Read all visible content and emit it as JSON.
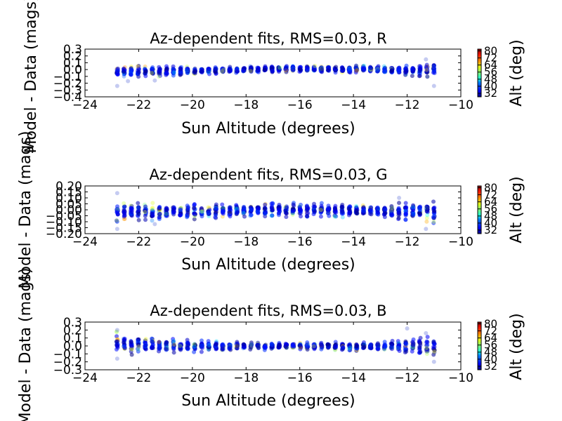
{
  "chart_data": [
    {
      "type": "scatter",
      "title": "Az-dependent fits, RMS=0.03, R",
      "xlabel": "Sun Altitude (degrees)",
      "ylabel": "Model - Data (mags)",
      "xlim": [
        -24,
        -10
      ],
      "ylim": [
        -0.4,
        0.3
      ],
      "xticks": [
        -24,
        -22,
        -20,
        -18,
        -16,
        -14,
        -12,
        -10
      ],
      "yticks": [
        0.3,
        0.2,
        0.1,
        0.0,
        -0.1,
        -0.2,
        -0.3,
        -0.4
      ],
      "xtick_labels": [
        "−24",
        "−22",
        "−20",
        "−18",
        "−16",
        "−14",
        "−12",
        "−10"
      ],
      "ytick_labels": [
        "0.3",
        "0.2",
        "0.1",
        "0.0",
        "−0.1",
        "−0.2",
        "−0.3",
        "−0.4"
      ],
      "colorbar": {
        "label": "Alt (deg)",
        "range": [
          28,
          82
        ],
        "ticks": [
          "80",
          "72",
          "64",
          "56",
          "48",
          "40",
          "32"
        ],
        "tick_values": [
          80,
          72,
          64,
          56,
          48,
          40,
          32
        ]
      },
      "x_start": -22.8,
      "x_end": -11.0,
      "n_columns": 46,
      "envelope": {
        "x": [
          -22.8,
          -21,
          -19,
          -17,
          -15,
          -13,
          -11.5,
          -11.0
        ],
        "upper": [
          0.06,
          0.05,
          0.04,
          0.06,
          0.06,
          0.06,
          0.07,
          0.14
        ],
        "lower": [
          -0.12,
          -0.1,
          -0.06,
          -0.04,
          -0.04,
          -0.06,
          -0.1,
          -0.13
        ]
      },
      "outliers": [
        [
          -22.8,
          -0.24
        ],
        [
          -22.4,
          -0.17
        ],
        [
          -11.3,
          0.15
        ],
        [
          -11.0,
          -0.24
        ],
        [
          -21.4,
          -0.16
        ]
      ],
      "grid": false
    },
    {
      "type": "scatter",
      "title": "Az-dependent fits, RMS=0.03, G",
      "xlabel": "Sun Altitude (degrees)",
      "ylabel": "Model - Data (mags)",
      "xlim": [
        -24,
        -10
      ],
      "ylim": [
        -0.2,
        0.2
      ],
      "xticks": [
        -24,
        -22,
        -20,
        -18,
        -16,
        -14,
        -12,
        -10
      ],
      "yticks": [
        0.2,
        0.15,
        0.1,
        0.05,
        0.0,
        -0.05,
        -0.1,
        -0.15,
        -0.2
      ],
      "xtick_labels": [
        "−24",
        "−22",
        "−20",
        "−18",
        "−16",
        "−14",
        "−12",
        "−10"
      ],
      "ytick_labels": [
        "0.20",
        "0.15",
        "0.10",
        "0.05",
        "0.00",
        "−0.05",
        "−0.10",
        "−0.15",
        "−0.20"
      ],
      "colorbar": {
        "label": "Alt (deg)",
        "range": [
          28,
          82
        ],
        "ticks": [
          "80",
          "72",
          "64",
          "56",
          "48",
          "40",
          "32"
        ],
        "tick_values": [
          80,
          72,
          64,
          56,
          48,
          40,
          32
        ]
      },
      "x_start": -22.8,
      "x_end": -11.0,
      "n_columns": 46,
      "envelope": {
        "x": [
          -22.8,
          -21,
          -19,
          -17,
          -15,
          -13,
          -11.5,
          -11.0
        ],
        "upper": [
          0.08,
          0.06,
          0.05,
          0.06,
          0.06,
          0.05,
          0.07,
          0.09
        ],
        "lower": [
          -0.1,
          -0.09,
          -0.07,
          -0.06,
          -0.06,
          -0.07,
          -0.1,
          -0.12
        ]
      },
      "outliers": [
        [
          -22.8,
          0.14
        ],
        [
          -22.8,
          -0.16
        ],
        [
          -11.3,
          -0.16
        ],
        [
          -21.4,
          -0.12
        ],
        [
          -12.3,
          0.1
        ]
      ],
      "grid": false
    },
    {
      "type": "scatter",
      "title": "Az-dependent fits, RMS=0.03, B",
      "xlabel": "Sun Altitude (degrees)",
      "ylabel": "Model - Data (mags)",
      "xlim": [
        -24,
        -10
      ],
      "ylim": [
        -0.3,
        0.3
      ],
      "xticks": [
        -24,
        -22,
        -20,
        -18,
        -16,
        -14,
        -12,
        -10
      ],
      "yticks": [
        0.3,
        0.2,
        0.1,
        0.0,
        -0.1,
        -0.2,
        -0.3
      ],
      "xtick_labels": [
        "−24",
        "−22",
        "−20",
        "−18",
        "−16",
        "−14",
        "−12",
        "−10"
      ],
      "ytick_labels": [
        "0.3",
        "0.2",
        "0.1",
        "0.0",
        "−0.1",
        "−0.2",
        "−0.3"
      ],
      "colorbar": {
        "label": "Alt (deg)",
        "range": [
          28,
          82
        ],
        "ticks": [
          "80",
          "72",
          "64",
          "56",
          "48",
          "40",
          "32"
        ],
        "tick_values": [
          80,
          72,
          64,
          56,
          48,
          40,
          32
        ]
      },
      "x_start": -22.8,
      "x_end": -11.0,
      "n_columns": 46,
      "envelope": {
        "x": [
          -22.8,
          -21,
          -19,
          -17,
          -15,
          -13,
          -11.5,
          -11.0
        ],
        "upper": [
          0.18,
          0.1,
          0.06,
          0.04,
          0.05,
          0.05,
          0.12,
          0.12
        ],
        "lower": [
          -0.12,
          -0.09,
          -0.07,
          -0.05,
          -0.05,
          -0.07,
          -0.1,
          -0.18
        ]
      },
      "outliers": [
        [
          -22.8,
          0.2
        ],
        [
          -22.8,
          -0.16
        ],
        [
          -11.3,
          0.16
        ],
        [
          -11.0,
          -0.2
        ],
        [
          -12.0,
          0.22
        ]
      ],
      "grid": false
    }
  ]
}
